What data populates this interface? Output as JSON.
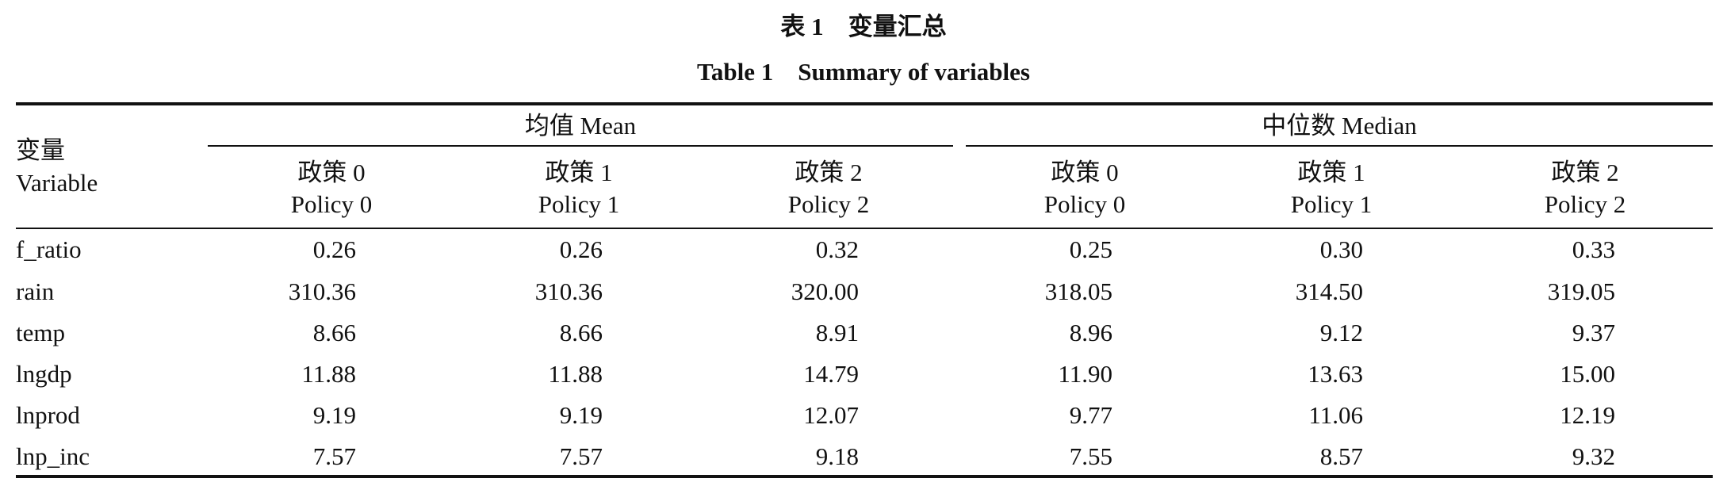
{
  "title_cn": "表 1　变量汇总",
  "title_en": "Table 1　Summary of variables",
  "table": {
    "variable_header": {
      "cn": "变量",
      "en": "Variable"
    },
    "groups": [
      "均值 Mean",
      "中位数 Median"
    ],
    "columns": [
      {
        "cn": "政策 0",
        "en": "Policy 0"
      },
      {
        "cn": "政策 1",
        "en": "Policy 1"
      },
      {
        "cn": "政策 2",
        "en": "Policy 2"
      },
      {
        "cn": "政策 0",
        "en": "Policy 0"
      },
      {
        "cn": "政策 1",
        "en": "Policy 1"
      },
      {
        "cn": "政策 2",
        "en": "Policy 2"
      }
    ],
    "rows": [
      [
        "f_ratio",
        "0.26",
        "0.26",
        "0.32",
        "0.25",
        "0.30",
        "0.33"
      ],
      [
        "rain",
        "310.36",
        "310.36",
        "320.00",
        "318.05",
        "314.50",
        "319.05"
      ],
      [
        "temp",
        "8.66",
        "8.66",
        "8.91",
        "8.96",
        "9.12",
        "9.37"
      ],
      [
        "lngdp",
        "11.88",
        "11.88",
        "14.79",
        "11.90",
        "13.63",
        "15.00"
      ],
      [
        "lnprod",
        "9.19",
        "9.19",
        "12.07",
        "9.77",
        "11.06",
        "12.19"
      ],
      [
        "lnp_inc",
        "7.57",
        "7.57",
        "9.18",
        "7.55",
        "8.57",
        "9.32"
      ]
    ]
  }
}
